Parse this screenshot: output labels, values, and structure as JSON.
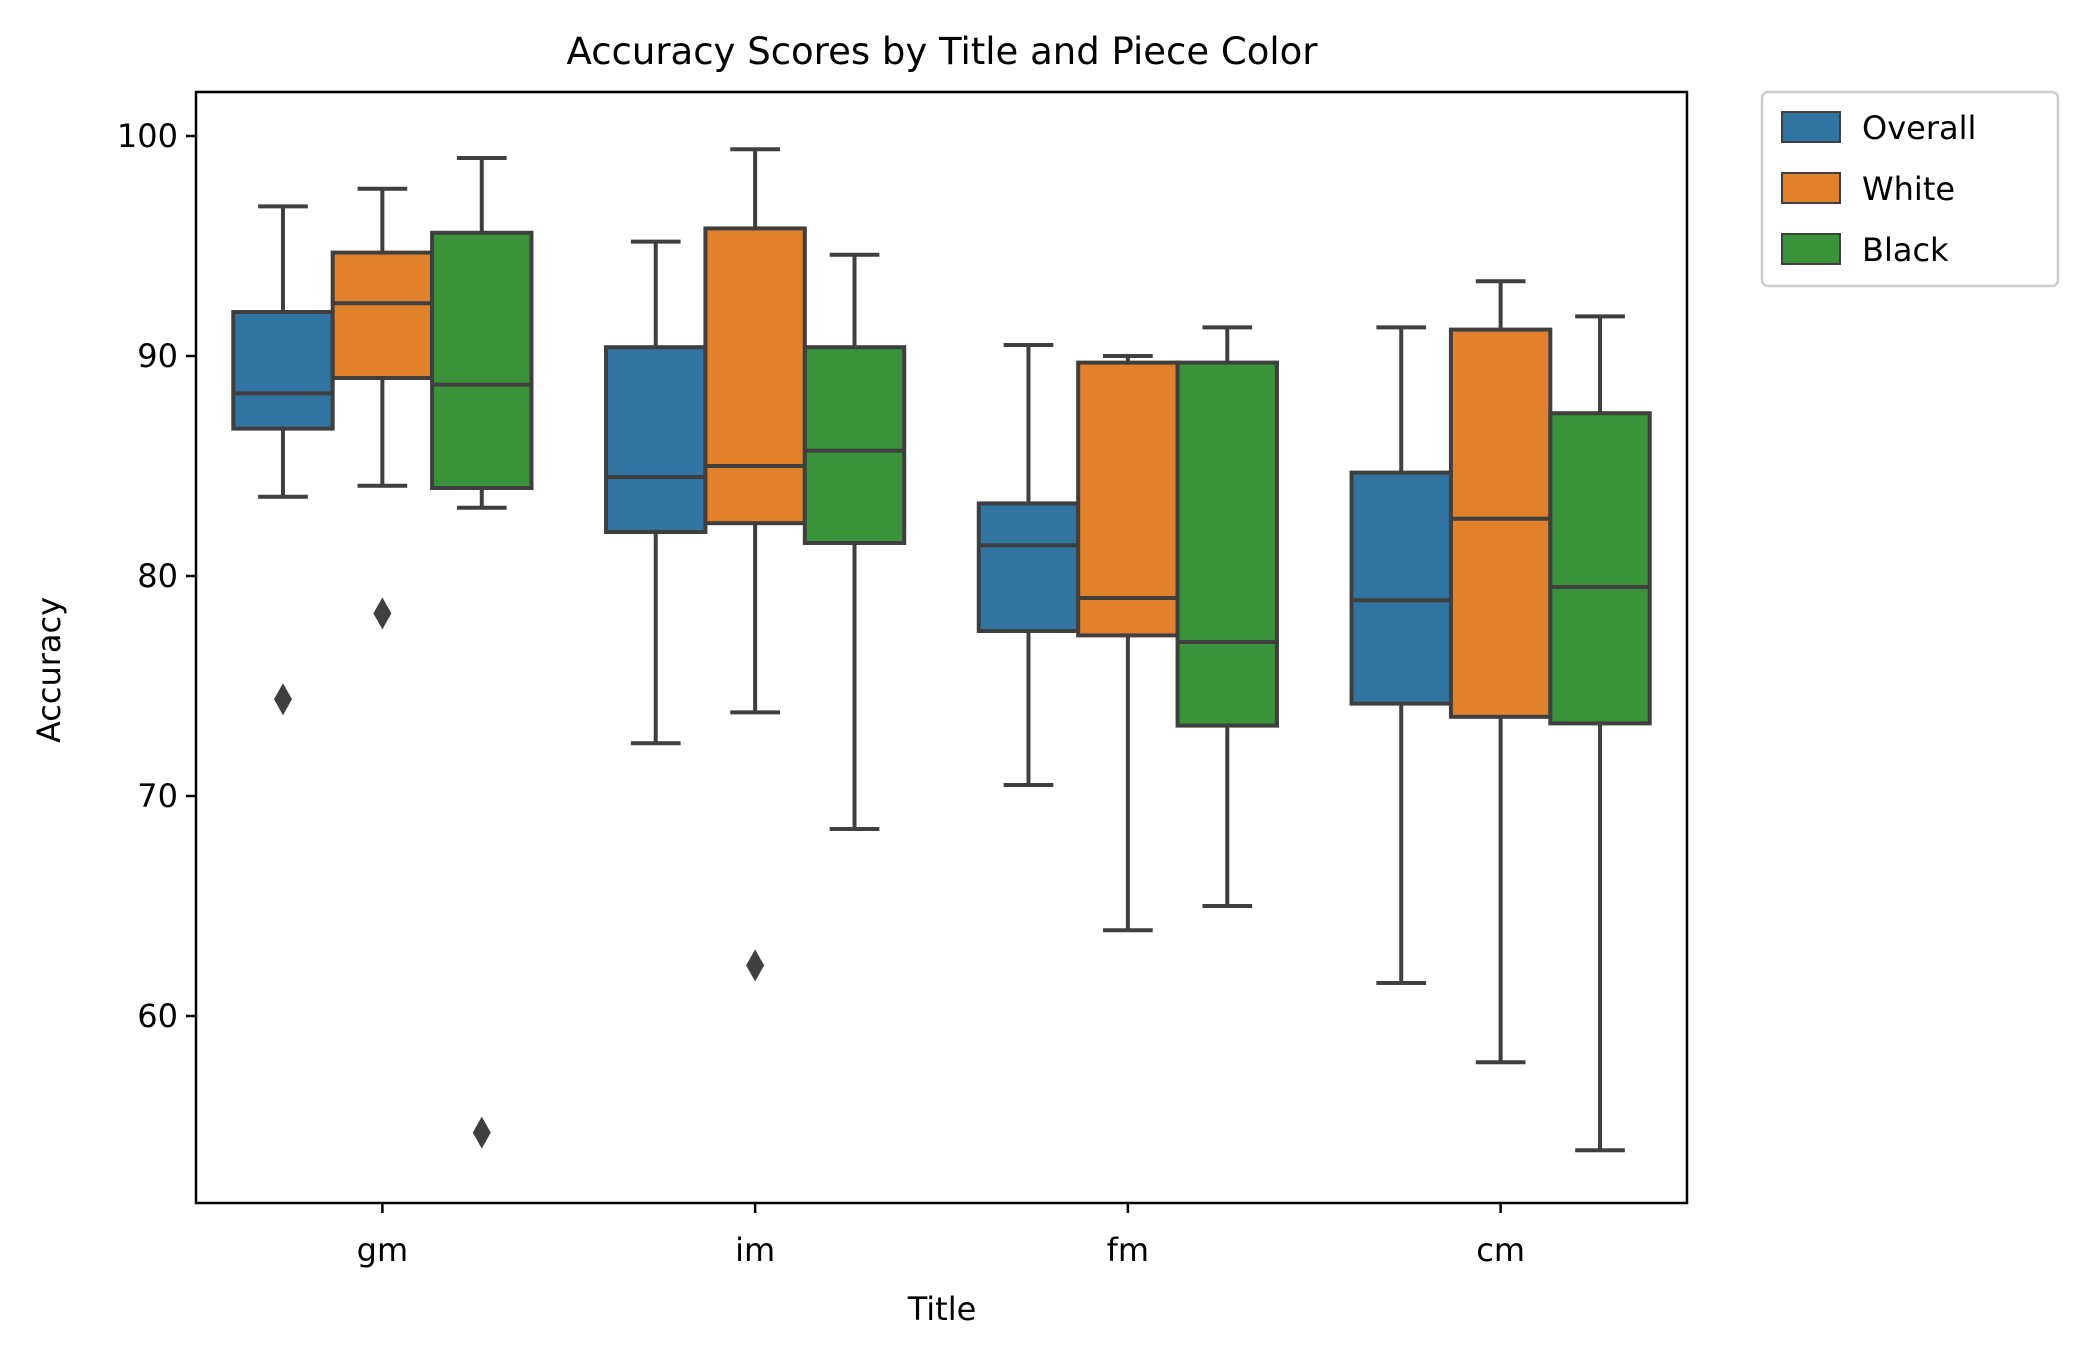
{
  "chart_data": {
    "type": "box",
    "title": "Accuracy Scores by Title and Piece Color",
    "xlabel": "Title",
    "ylabel": "Accuracy",
    "ylim": [
      51.5,
      102
    ],
    "yticks": [
      60,
      70,
      80,
      90,
      100
    ],
    "grid": false,
    "legend_position": "outside-top-right",
    "categories": [
      "gm",
      "im",
      "fm",
      "cm"
    ],
    "series": [
      {
        "name": "Overall",
        "color": "#3274a1",
        "boxes": [
          {
            "whislo": 83.6,
            "q1": 86.7,
            "med": 88.3,
            "q3": 92.0,
            "whishi": 96.8,
            "fliers": [
              74.4
            ]
          },
          {
            "whislo": 72.4,
            "q1": 82.0,
            "med": 84.5,
            "q3": 90.4,
            "whishi": 95.2,
            "fliers": []
          },
          {
            "whislo": 70.5,
            "q1": 77.5,
            "med": 81.4,
            "q3": 83.3,
            "whishi": 90.5,
            "fliers": []
          },
          {
            "whislo": 61.5,
            "q1": 74.2,
            "med": 78.9,
            "q3": 84.7,
            "whishi": 91.3,
            "fliers": []
          }
        ]
      },
      {
        "name": "White",
        "color": "#e1812c",
        "boxes": [
          {
            "whislo": 84.1,
            "q1": 89.0,
            "med": 92.4,
            "q3": 94.7,
            "whishi": 97.6,
            "fliers": [
              78.3
            ]
          },
          {
            "whislo": 73.8,
            "q1": 82.4,
            "med": 85.0,
            "q3": 95.8,
            "whishi": 99.4,
            "fliers": [
              62.3
            ]
          },
          {
            "whislo": 63.9,
            "q1": 77.3,
            "med": 79.0,
            "q3": 89.7,
            "whishi": 90.0,
            "fliers": []
          },
          {
            "whislo": 57.9,
            "q1": 73.6,
            "med": 82.6,
            "q3": 91.2,
            "whishi": 93.4,
            "fliers": []
          }
        ]
      },
      {
        "name": "Black",
        "color": "#3a923a",
        "boxes": [
          {
            "whislo": 83.1,
            "q1": 84.0,
            "med": 88.7,
            "q3": 95.6,
            "whishi": 99.0,
            "fliers": [
              54.7
            ]
          },
          {
            "whislo": 68.5,
            "q1": 81.5,
            "med": 85.7,
            "q3": 90.4,
            "whishi": 94.6,
            "fliers": []
          },
          {
            "whislo": 65.0,
            "q1": 73.2,
            "med": 77.0,
            "q3": 89.7,
            "whishi": 91.3,
            "fliers": []
          },
          {
            "whislo": 53.9,
            "q1": 73.3,
            "med": 79.5,
            "q3": 87.4,
            "whishi": 91.8,
            "fliers": []
          }
        ]
      }
    ]
  }
}
